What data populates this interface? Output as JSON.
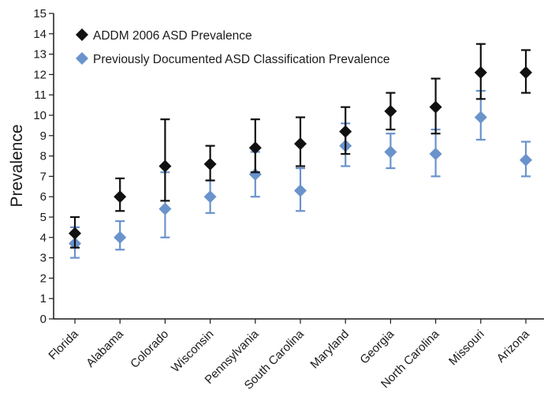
{
  "chart_data": {
    "type": "scatter",
    "title": "",
    "xlabel": "",
    "ylabel": "Prevalence",
    "ylim": [
      0,
      15
    ],
    "yticks": [
      0,
      1,
      2,
      3,
      4,
      5,
      6,
      7,
      8,
      9,
      10,
      11,
      12,
      13,
      14,
      15
    ],
    "categories": [
      "Florida",
      "Alabama",
      "Colorado",
      "Wisconsin",
      "Pennsylvania",
      "South Carolina",
      "Maryland",
      "Georgia",
      "North Carolina",
      "Missouri",
      "Arizona"
    ],
    "grid": false,
    "legend_position": "top-left",
    "series": [
      {
        "name": "ADDM 2006 ASD Prevalence",
        "color": "#111111",
        "marker": "diamond",
        "values": [
          4.2,
          6.0,
          7.5,
          7.6,
          8.4,
          8.6,
          9.2,
          10.2,
          10.4,
          12.1,
          12.1
        ],
        "error_low": [
          3.5,
          5.3,
          5.8,
          6.8,
          7.2,
          7.5,
          8.1,
          9.3,
          9.1,
          10.8,
          11.1
        ],
        "error_high": [
          5.0,
          6.9,
          9.8,
          8.5,
          9.8,
          9.9,
          10.4,
          11.1,
          11.8,
          13.5,
          13.2
        ]
      },
      {
        "name": "Previously Documented ASD Classification Prevalence",
        "color": "#6a93cc",
        "marker": "diamond",
        "values": [
          3.7,
          4.0,
          5.4,
          6.0,
          7.1,
          6.3,
          8.5,
          8.2,
          8.1,
          9.9,
          7.8
        ],
        "error_low": [
          3.0,
          3.4,
          4.0,
          5.2,
          6.0,
          5.3,
          7.5,
          7.4,
          7.0,
          8.8,
          7.0
        ],
        "error_high": [
          4.5,
          4.8,
          7.2,
          6.8,
          8.2,
          7.4,
          9.6,
          9.1,
          9.3,
          11.2,
          8.7
        ]
      }
    ]
  }
}
